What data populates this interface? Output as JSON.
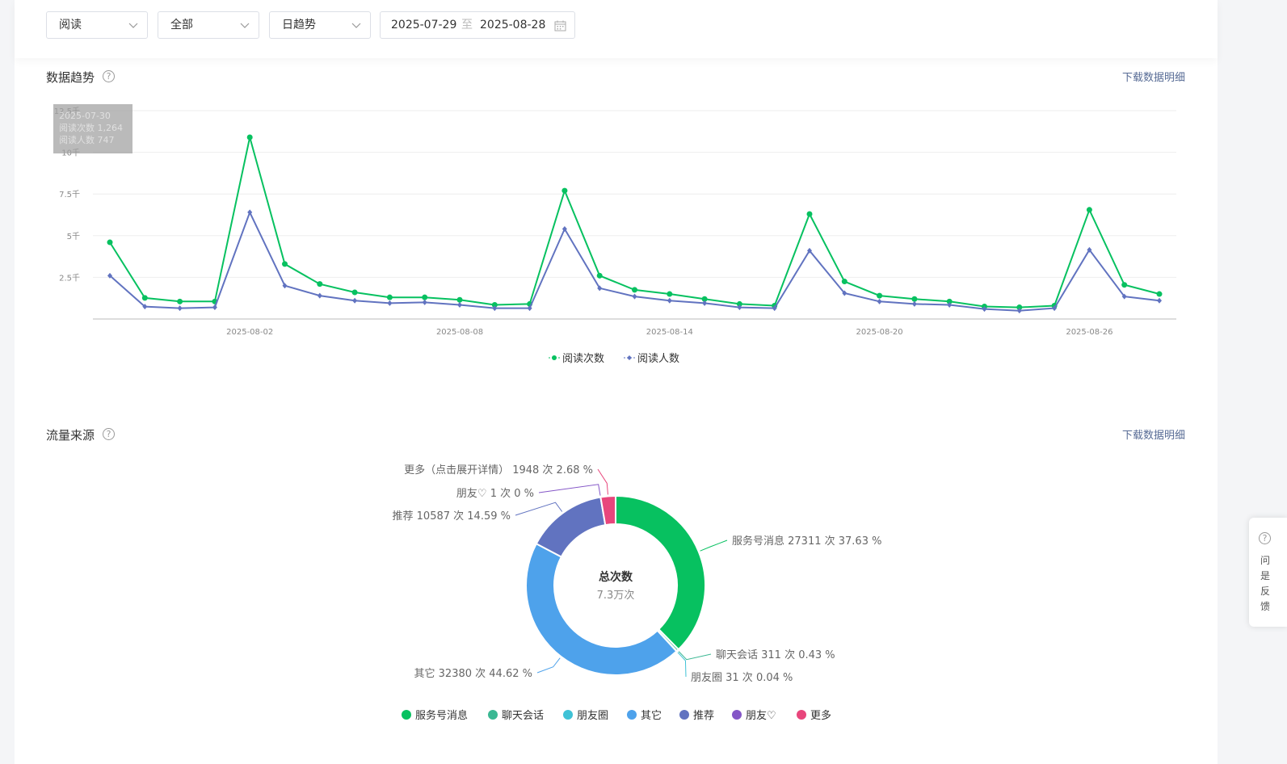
{
  "filters": {
    "metric": "阅读",
    "scope": "全部",
    "granularity": "日趋势",
    "start_date": "2025-07-29",
    "range_sep": "至",
    "end_date": "2025-08-28"
  },
  "trend_section": {
    "title": "数据趋势",
    "download_label": "下载数据明细",
    "tooltip": {
      "date": "2025-07-30",
      "line1": "阅读次数 1,264",
      "line2": "阅读人数 747"
    }
  },
  "source_section": {
    "title": "流量来源",
    "download_label": "下载数据明细",
    "center_title": "总次数",
    "center_value": "7.3万次"
  },
  "feedback": {
    "chars": [
      "问",
      "是",
      "反",
      "馈"
    ]
  },
  "chart_data": [
    {
      "type": "line",
      "x": [
        "2025-07-29",
        "2025-07-30",
        "2025-07-31",
        "2025-08-01",
        "2025-08-02",
        "2025-08-03",
        "2025-08-04",
        "2025-08-05",
        "2025-08-06",
        "2025-08-07",
        "2025-08-08",
        "2025-08-09",
        "2025-08-10",
        "2025-08-11",
        "2025-08-12",
        "2025-08-13",
        "2025-08-14",
        "2025-08-15",
        "2025-08-16",
        "2025-08-17",
        "2025-08-18",
        "2025-08-19",
        "2025-08-20",
        "2025-08-21",
        "2025-08-22",
        "2025-08-23",
        "2025-08-24",
        "2025-08-25",
        "2025-08-26",
        "2025-08-27",
        "2025-08-28"
      ],
      "x_tick_labels": [
        "2025-08-02",
        "2025-08-08",
        "2025-08-14",
        "2025-08-20",
        "2025-08-26"
      ],
      "y_tick_labels": [
        "2.5千",
        "5千",
        "7.5千",
        "10千",
        "12.5千"
      ],
      "ylim": [
        0,
        12500
      ],
      "grid": true,
      "legend_position": "bottom-center",
      "series": [
        {
          "name": "阅读次数",
          "color": "#07c160",
          "marker": "circle",
          "values": [
            4600,
            1264,
            1050,
            1050,
            10900,
            3300,
            2100,
            1600,
            1300,
            1300,
            1150,
            850,
            900,
            7700,
            2600,
            1750,
            1500,
            1200,
            900,
            800,
            6300,
            2250,
            1400,
            1200,
            1050,
            750,
            700,
            800,
            6550,
            2050,
            1500
          ]
        },
        {
          "name": "阅读人数",
          "color": "#6173c0",
          "marker": "diamond",
          "values": [
            2600,
            747,
            650,
            700,
            6400,
            2000,
            1400,
            1100,
            950,
            1000,
            850,
            650,
            650,
            5400,
            1850,
            1350,
            1100,
            950,
            700,
            650,
            4100,
            1550,
            1050,
            900,
            850,
            600,
            500,
            650,
            4150,
            1350,
            1100
          ]
        }
      ]
    },
    {
      "type": "pie",
      "total_label": "7.3万次",
      "slices": [
        {
          "name": "服务号消息",
          "count": 27311,
          "percent": 37.63,
          "color": "#07c160",
          "label": "服务号消息 27311 次 37.63 %"
        },
        {
          "name": "聊天会话",
          "count": 311,
          "percent": 0.43,
          "color": "#3bb893",
          "label": "聊天会话 311 次 0.43 %"
        },
        {
          "name": "朋友圈",
          "count": 31,
          "percent": 0.04,
          "color": "#3fc2d6",
          "label": "朋友圈 31 次 0.04 %"
        },
        {
          "name": "其它",
          "count": 32380,
          "percent": 44.62,
          "color": "#4ea2eb",
          "label": "其它 32380 次 44.62 %"
        },
        {
          "name": "推荐",
          "count": 10587,
          "percent": 14.59,
          "color": "#6173c0",
          "label": "推荐 10587 次 14.59 %"
        },
        {
          "name": "朋友♡",
          "count": 1,
          "percent": 0,
          "color": "#8456c7",
          "label": "朋友♡ 1 次 0 %"
        },
        {
          "name": "更多",
          "count": 1948,
          "percent": 2.68,
          "color": "#e8467c",
          "label": "更多（点击展开详情） 1948 次 2.68 %"
        }
      ],
      "legend": [
        "服务号消息",
        "聊天会话",
        "朋友圈",
        "其它",
        "推荐",
        "朋友♡",
        "更多"
      ],
      "legend_position": "bottom-center"
    }
  ]
}
